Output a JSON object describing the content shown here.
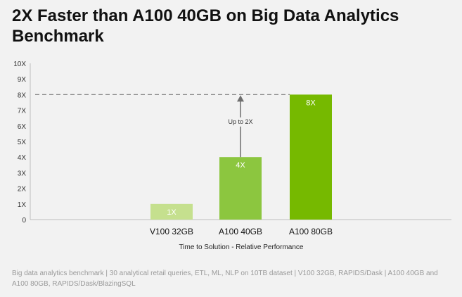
{
  "title": "2X Faster than A100 40GB on Big Data Analytics Benchmark",
  "footnote": "Big data analytics benchmark |  30 analytical retail queries, ETL, ML, NLP on 10TB dataset | V100 32GB, RAPIDS/Dask | A100 40GB and A100 80GB, RAPIDS/Dask/BlazingSQL",
  "colors": {
    "background": "#f2f2f2",
    "bar_v100": "#c5e08e",
    "bar_a100_40": "#8cc63f",
    "bar_a100_80": "#76b900",
    "arrow": "#6e6e6e"
  },
  "chart_data": {
    "type": "bar",
    "categories": [
      "V100 32GB",
      "A100 40GB",
      "A100 80GB"
    ],
    "values": [
      1,
      4,
      8
    ],
    "data_labels": [
      "1X",
      "4X",
      "8X"
    ],
    "title": "2X Faster than A100 40GB on Big Data Analytics Benchmark",
    "xlabel": "Time to Solution - Relative Performance",
    "ylabel": "",
    "ylim": [
      0,
      10
    ],
    "yticks": [
      "0",
      "1X",
      "2X",
      "3X",
      "4X",
      "5X",
      "6X",
      "7X",
      "8X",
      "9X",
      "10X"
    ],
    "grid": false,
    "reference_line": {
      "value": 8,
      "style": "dashed"
    },
    "annotation": {
      "text": "Up to 2X",
      "from": 4,
      "to": 8,
      "category": "A100 40GB"
    }
  }
}
